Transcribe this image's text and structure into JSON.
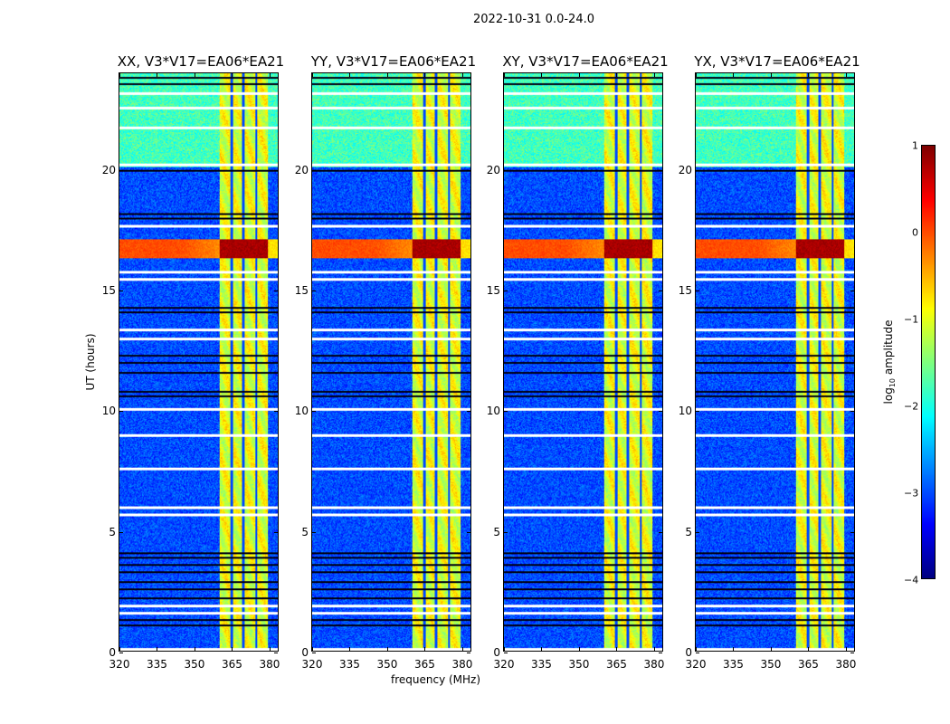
{
  "suptitle": "2022-10-31 0.0-24.0",
  "chart_data": {
    "type": "heatmap",
    "title": "2022-10-31 0.0-24.0",
    "xlabel": "frequency (MHz)",
    "ylabel": "UT (hours)",
    "xlim": [
      320,
      384
    ],
    "ylim": [
      0,
      24
    ],
    "xticks": [
      320,
      335,
      350,
      365,
      380
    ],
    "yticks": [
      0,
      5,
      10,
      15,
      20
    ],
    "panels": [
      {
        "title": "XX, V3*V17=EA06*EA21"
      },
      {
        "title": "YY, V3*V17=EA06*EA21"
      },
      {
        "title": "XY, V3*V17=EA06*EA21"
      },
      {
        "title": "YX, V3*V17=EA06*EA21"
      }
    ],
    "colorbar": {
      "label_main": "log",
      "label_sub": "10",
      "label_rest": " amplitude",
      "range": [
        -4,
        1
      ],
      "ticks": [
        "1",
        "0",
        "−1",
        "−2",
        "−3",
        "−4"
      ],
      "colormap": "jet"
    },
    "features": {
      "background_level": -3.0,
      "rfi_band_mhz": [
        360.4,
        380
      ],
      "rfi_band_level": -1.0,
      "rfi_band_gaps_mhz": [
        365.5,
        370.2,
        375.3
      ],
      "high_noise_hours": [
        20.1,
        24
      ],
      "high_noise_level": -1.8,
      "strong_event_hours": [
        16.3,
        17.1
      ],
      "strong_event_level": 0.0,
      "strong_event_band_level": 0.8,
      "flagged_dark_hours": [
        23.85,
        23.6,
        20.0,
        18.2,
        18.0,
        14.3,
        14.1,
        12.3,
        12.0,
        11.6,
        10.8,
        10.6,
        4.1,
        3.9,
        3.6,
        3.3,
        2.9,
        2.6,
        2.2,
        1.3,
        1.1
      ],
      "blank_hours": [
        23.2,
        22.6,
        21.8,
        20.25,
        17.7,
        15.8,
        15.5,
        13.4,
        13.0,
        10.1,
        9.0,
        7.6,
        6.0,
        5.7,
        1.9,
        1.6,
        0.1
      ]
    }
  }
}
